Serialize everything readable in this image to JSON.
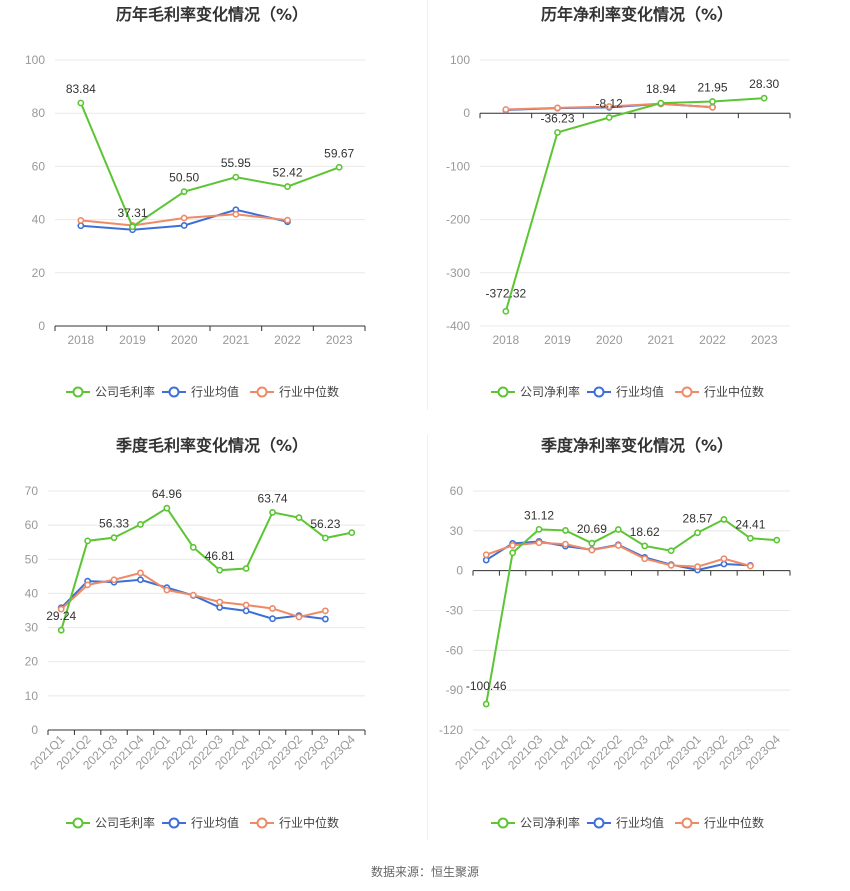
{
  "colors": {
    "company": "#5cc534",
    "industry_avg": "#3d6fd6",
    "industry_median": "#ee8a66",
    "grid": "#e8e8e8",
    "axis": "#333333"
  },
  "source_text": "数据来源：恒生聚源",
  "chart_data": [
    {
      "type": "line",
      "title": "历年毛利率变化情况（%）",
      "categories": [
        "2018",
        "2019",
        "2020",
        "2021",
        "2022",
        "2023"
      ],
      "yticks": [
        0,
        20,
        40,
        60,
        80,
        100
      ],
      "ylim": [
        0,
        100
      ],
      "x_label_rotate": false,
      "series": [
        {
          "name": "公司毛利率",
          "color_key": "company",
          "values": [
            83.84,
            37.31,
            50.5,
            55.95,
            52.42,
            59.67
          ],
          "labels": [
            "83.84",
            "37.31",
            "50.50",
            "55.95",
            "52.42",
            "59.67"
          ]
        },
        {
          "name": "行业均值",
          "color_key": "industry_avg",
          "values": [
            37.7,
            36.2,
            37.8,
            43.7,
            39.2,
            null
          ]
        },
        {
          "name": "行业中位数",
          "color_key": "industry_median",
          "values": [
            39.7,
            37.8,
            40.6,
            42.0,
            39.8,
            null
          ]
        }
      ]
    },
    {
      "type": "line",
      "title": "历年净利率变化情况（%）",
      "categories": [
        "2018",
        "2019",
        "2020",
        "2021",
        "2022",
        "2023"
      ],
      "yticks": [
        -400,
        -300,
        -200,
        -100,
        0,
        100
      ],
      "ylim": [
        -400,
        100
      ],
      "x_label_rotate": false,
      "series": [
        {
          "name": "公司净利率",
          "color_key": "company",
          "values": [
            -372.32,
            -36.23,
            -8.12,
            18.94,
            21.95,
            28.3
          ],
          "labels": [
            "-372.32",
            "-36.23",
            "-8.12",
            "18.94",
            "21.95",
            "28.30"
          ]
        },
        {
          "name": "行业均值",
          "color_key": "industry_avg",
          "values": [
            6.0,
            9.5,
            11.0,
            17.5,
            11.5,
            null
          ]
        },
        {
          "name": "行业中位数",
          "color_key": "industry_median",
          "values": [
            7.0,
            10.0,
            12.5,
            18.0,
            11.0,
            null
          ]
        }
      ]
    },
    {
      "type": "line",
      "title": "季度毛利率变化情况（%）",
      "categories": [
        "2021Q1",
        "2021Q2",
        "2021Q3",
        "2021Q4",
        "2022Q1",
        "2022Q2",
        "2022Q3",
        "2022Q4",
        "2023Q1",
        "2023Q2",
        "2023Q3",
        "2023Q4"
      ],
      "yticks": [
        0,
        10,
        20,
        30,
        40,
        50,
        60,
        70
      ],
      "ylim": [
        0,
        70
      ],
      "x_label_rotate": true,
      "series": [
        {
          "name": "公司毛利率",
          "color_key": "company",
          "values": [
            29.24,
            55.4,
            56.33,
            60.2,
            64.96,
            53.5,
            46.81,
            47.3,
            63.74,
            62.2,
            56.23,
            57.8
          ],
          "labels": [
            "29.24",
            "",
            "56.33",
            "",
            "64.96",
            "",
            "46.81",
            "",
            "63.74",
            "",
            "56.23",
            ""
          ]
        },
        {
          "name": "行业均值",
          "color_key": "industry_avg",
          "values": [
            35.8,
            43.6,
            43.3,
            44.0,
            41.7,
            39.4,
            35.9,
            34.9,
            32.6,
            33.5,
            32.5,
            null
          ]
        },
        {
          "name": "行业中位数",
          "color_key": "industry_median",
          "values": [
            35.4,
            42.5,
            44.0,
            46.0,
            41.0,
            39.5,
            37.5,
            36.6,
            35.6,
            33.1,
            34.9,
            null
          ]
        }
      ]
    },
    {
      "type": "line",
      "title": "季度净利率变化情况（%）",
      "categories": [
        "2021Q1",
        "2021Q2",
        "2021Q3",
        "2021Q4",
        "2022Q1",
        "2022Q2",
        "2022Q3",
        "2022Q4",
        "2023Q1",
        "2023Q2",
        "2023Q3",
        "2023Q4"
      ],
      "yticks": [
        -120,
        -90,
        -60,
        -30,
        0,
        30,
        60
      ],
      "ylim": [
        -120,
        60
      ],
      "x_label_rotate": true,
      "series": [
        {
          "name": "公司净利率",
          "color_key": "company",
          "values": [
            -100.46,
            13.5,
            31.12,
            30.3,
            20.69,
            31.0,
            18.62,
            15.0,
            28.57,
            38.6,
            24.41,
            23.0
          ],
          "labels": [
            "-100.46",
            "",
            "31.12",
            "",
            "20.69",
            "",
            "18.62",
            "",
            "28.57",
            "",
            "24.41",
            ""
          ]
        },
        {
          "name": "行业均值",
          "color_key": "industry_avg",
          "values": [
            8.0,
            20.5,
            22.0,
            18.5,
            15.8,
            19.5,
            10.0,
            4.5,
            0.5,
            5.0,
            4.0,
            null
          ]
        },
        {
          "name": "行业中位数",
          "color_key": "industry_median",
          "values": [
            12.0,
            19.0,
            21.0,
            20.0,
            15.5,
            19.0,
            9.0,
            4.0,
            3.0,
            9.0,
            3.5,
            null
          ]
        }
      ]
    }
  ]
}
